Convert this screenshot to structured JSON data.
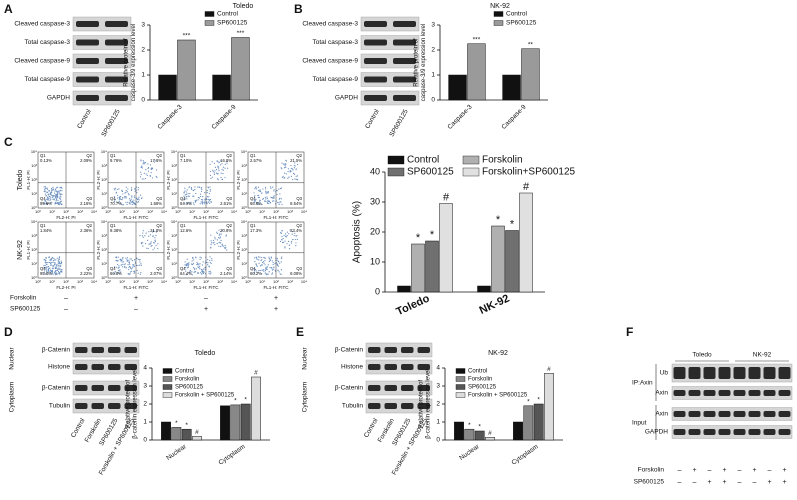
{
  "panel_labels": [
    "A",
    "B",
    "C",
    "D",
    "E",
    "F"
  ],
  "blot_a": {
    "rows": [
      "Cleaved caspase-3",
      "Total caspase-3",
      "Cleaved caspase-9",
      "Total caspase-9",
      "GAPDH"
    ],
    "lanes": [
      "Control",
      "SP600125"
    ]
  },
  "blot_b": {
    "rows": [
      "Cleaved caspase-3",
      "Total caspase-3",
      "Cleaved caspase-9",
      "Total caspase-9",
      "GAPDH"
    ],
    "lanes": [
      "Control",
      "SP600125"
    ]
  },
  "flow": {
    "rows": [
      "Toledo",
      "NK-92"
    ],
    "axis_ticks": [
      "10⁰",
      "10¹",
      "10²",
      "10³",
      "10⁴"
    ],
    "plots": [
      {
        "xlabel": "FL2-H: PI",
        "ylabel": "FL1-H: PI",
        "q1": "Q1",
        "q1v": "0.13%",
        "q2": "Q2",
        "q2v": "2.09%",
        "q4": "Q4",
        "q4v": "95.6%",
        "q3": "Q3",
        "q3v": "2.16%"
      },
      {
        "xlabel": "FL1-H: FITC",
        "ylabel": "FL2-H: PI",
        "q1": "Q1",
        "q1v": "9.76%",
        "q2": "Q2",
        "q2v": "17.8%",
        "q4": "Q4",
        "q4v": "70.7%",
        "q3": "Q3",
        "q3v": "1.68%"
      },
      {
        "xlabel": "FL1-H: FITC",
        "ylabel": "FL2-H: PI",
        "q1": "Q1",
        "q1v": "7.10%",
        "q2": "Q2",
        "q2v": "16.8%",
        "q4": "Q4",
        "q4v": "64.0%",
        "q3": "Q3",
        "q3v": "2.61%"
      },
      {
        "xlabel": "FL1-H: FITC",
        "ylabel": "FL2-H: PI",
        "q1": "Q1",
        "q1v": "2.57%",
        "q2": "Q2",
        "q2v": "21.5%",
        "q4": "Q4",
        "q4v": "66.6%",
        "q3": "Q3",
        "q3v": "8.54%"
      },
      {
        "xlabel": "FL2-H: PI",
        "ylabel": "FL1-H: PI",
        "q1": "Q1",
        "q1v": "1.84%",
        "q2": "Q2",
        "q2v": "2.36%",
        "q4": "Q4",
        "q4v": "95.0%",
        "q3": "Q3",
        "q3v": "2.22%"
      },
      {
        "xlabel": "FL1-H: FITC",
        "ylabel": "FL2-H: PI",
        "q1": "Q1",
        "q1v": "9.38%",
        "q2": "Q2",
        "q2v": "21.8%",
        "q4": "Q4",
        "q4v": "66.8%",
        "q3": "Q3",
        "q3v": "2.07%"
      },
      {
        "xlabel": "FL1-H: FITC",
        "ylabel": "FL2-H: PI",
        "q1": "Q1",
        "q1v": "12.6%",
        "q2": "Q2",
        "q2v": "20.8%",
        "q4": "Q4",
        "q4v": "64.4%",
        "q3": "Q3",
        "q3v": "2.14%"
      },
      {
        "xlabel": "FL1-H: FITC",
        "ylabel": "FL2-H: PI",
        "q1": "Q1",
        "q1v": "17.3%",
        "q2": "Q2",
        "q2v": "23.4%",
        "q4": "Q4",
        "q4v": "60.2%",
        "q3": "Q3",
        "q3v": "8.08%"
      }
    ],
    "treatments": [
      {
        "label": "Forskolin",
        "signs": [
          "–",
          "+",
          "–",
          "+"
        ]
      },
      {
        "label": "SP600125",
        "signs": [
          "–",
          "–",
          "+",
          "+"
        ]
      }
    ]
  },
  "blot_d": {
    "groups": [
      {
        "label": "Nuclear",
        "rows": [
          "β-Catenin",
          "Histone"
        ]
      },
      {
        "label": "Cytoplasm",
        "rows": [
          "β-Catenin",
          "Tubulin"
        ]
      }
    ],
    "lanes": [
      "Control",
      "Forskolin",
      "SP600125",
      "Forskolin + SP600125"
    ]
  },
  "blot_e": {
    "groups": [
      {
        "label": "Nuclear",
        "rows": [
          "β-Catenin",
          "Histone"
        ]
      },
      {
        "label": "Cytoplasm",
        "rows": [
          "β-Catenin",
          "Tubulin"
        ]
      }
    ],
    "lanes": [
      "Control",
      "Forskolin",
      "SP600125",
      "Forskolin + SP600125"
    ]
  },
  "blot_f": {
    "cells": [
      "Toledo",
      "NK-92"
    ],
    "groups": [
      {
        "label": "IP:Axin",
        "rows": [
          "Ub",
          "Axin"
        ]
      },
      {
        "label": "Input",
        "rows": [
          "Axin",
          "GAPDH"
        ]
      }
    ],
    "treatments": [
      {
        "label": "Forskolin",
        "signs": [
          "–",
          "+",
          "–",
          "+",
          "–",
          "+",
          "–",
          "+"
        ]
      },
      {
        "label": "SP600125",
        "signs": [
          "–",
          "–",
          "+",
          "+",
          "–",
          "–",
          "+",
          "+"
        ]
      }
    ]
  },
  "chart_data": [
    {
      "type": "bar",
      "title": "Toledo",
      "ylabel": [
        "Relative protein of",
        "caspase-3/9 expression level"
      ],
      "categories": [
        "Caspase-3",
        "Caspase-9"
      ],
      "series": [
        {
          "name": "Control",
          "color": "#111111",
          "values": [
            1.0,
            1.0
          ],
          "markers": [
            null,
            null
          ]
        },
        {
          "name": "SP600125",
          "color": "#9a9a9a",
          "values": [
            2.4,
            2.5
          ],
          "markers": [
            "***",
            "***"
          ]
        }
      ],
      "ylim": [
        0,
        3
      ],
      "yticks": [
        0,
        1,
        2,
        3
      ]
    },
    {
      "type": "bar",
      "title": "NK-92",
      "ylabel": [
        "Relative protein of",
        "caspase-3/9 expression level"
      ],
      "categories": [
        "Caspase-3",
        "Caspase-9"
      ],
      "series": [
        {
          "name": "Control",
          "color": "#111111",
          "values": [
            1.0,
            1.0
          ],
          "markers": [
            null,
            null
          ]
        },
        {
          "name": "SP600125",
          "color": "#9a9a9a",
          "values": [
            2.25,
            2.05
          ],
          "markers": [
            "***",
            "**"
          ]
        }
      ],
      "ylim": [
        0,
        3
      ],
      "yticks": [
        0,
        1,
        2,
        3
      ]
    },
    {
      "type": "bar",
      "ylabel": [
        "Apoptosis (%)"
      ],
      "categories": [
        "Toledo",
        "NK-92"
      ],
      "series": [
        {
          "name": "Control",
          "color": "#111111",
          "values": [
            2,
            2
          ],
          "markers": [
            null,
            null
          ]
        },
        {
          "name": "Forskolin",
          "color": "#b0b0b0",
          "values": [
            16,
            22
          ],
          "markers": [
            "*",
            "*"
          ]
        },
        {
          "name": "SP600125",
          "color": "#707070",
          "values": [
            17,
            20.5
          ],
          "markers": [
            "*",
            "*"
          ]
        },
        {
          "name": "Forskolin+SP600125",
          "color": "#e0e0e0",
          "values": [
            29.5,
            33
          ],
          "markers": [
            "#",
            "#"
          ]
        }
      ],
      "ylim": [
        0,
        40
      ],
      "yticks": [
        0,
        10,
        20,
        30,
        40
      ]
    },
    {
      "type": "bar",
      "title": "Toledo",
      "ylabel": [
        "Relative protein of",
        "β-catenin expression level"
      ],
      "categories": [
        "Nuclear",
        "Cytoplasm"
      ],
      "series": [
        {
          "name": "Control",
          "color": "#111111",
          "values": [
            1.0,
            1.9
          ],
          "markers": [
            null,
            null
          ]
        },
        {
          "name": "Forskolin",
          "color": "#888888",
          "values": [
            0.7,
            1.95
          ],
          "markers": [
            "*",
            "*"
          ]
        },
        {
          "name": "SP600125",
          "color": "#555555",
          "values": [
            0.6,
            2.0
          ],
          "markers": [
            "*",
            "*"
          ]
        },
        {
          "name": "Forskolin + SP600125",
          "color": "#dddddd",
          "values": [
            0.2,
            3.5
          ],
          "markers": [
            "#",
            "#"
          ]
        }
      ],
      "ylim": [
        0,
        4
      ],
      "yticks": [
        0,
        1,
        2,
        3,
        4
      ]
    },
    {
      "type": "bar",
      "title": "NK-92",
      "ylabel": [
        "Relative protein of",
        "β-catenin expression level"
      ],
      "categories": [
        "Nuclear",
        "Cytoplasm"
      ],
      "series": [
        {
          "name": "Control",
          "color": "#111111",
          "values": [
            1.0,
            1.0
          ],
          "markers": [
            null,
            null
          ]
        },
        {
          "name": "Forskolin",
          "color": "#888888",
          "values": [
            0.6,
            1.9
          ],
          "markers": [
            "*",
            "*"
          ]
        },
        {
          "name": "SP600125",
          "color": "#555555",
          "values": [
            0.5,
            2.0
          ],
          "markers": [
            "*",
            "*"
          ]
        },
        {
          "name": "Forskolin + SP600125",
          "color": "#dddddd",
          "values": [
            0.15,
            3.7
          ],
          "markers": [
            "#",
            "#"
          ]
        }
      ],
      "ylim": [
        0,
        4
      ],
      "yticks": [
        0,
        1,
        2,
        3,
        4
      ]
    }
  ]
}
